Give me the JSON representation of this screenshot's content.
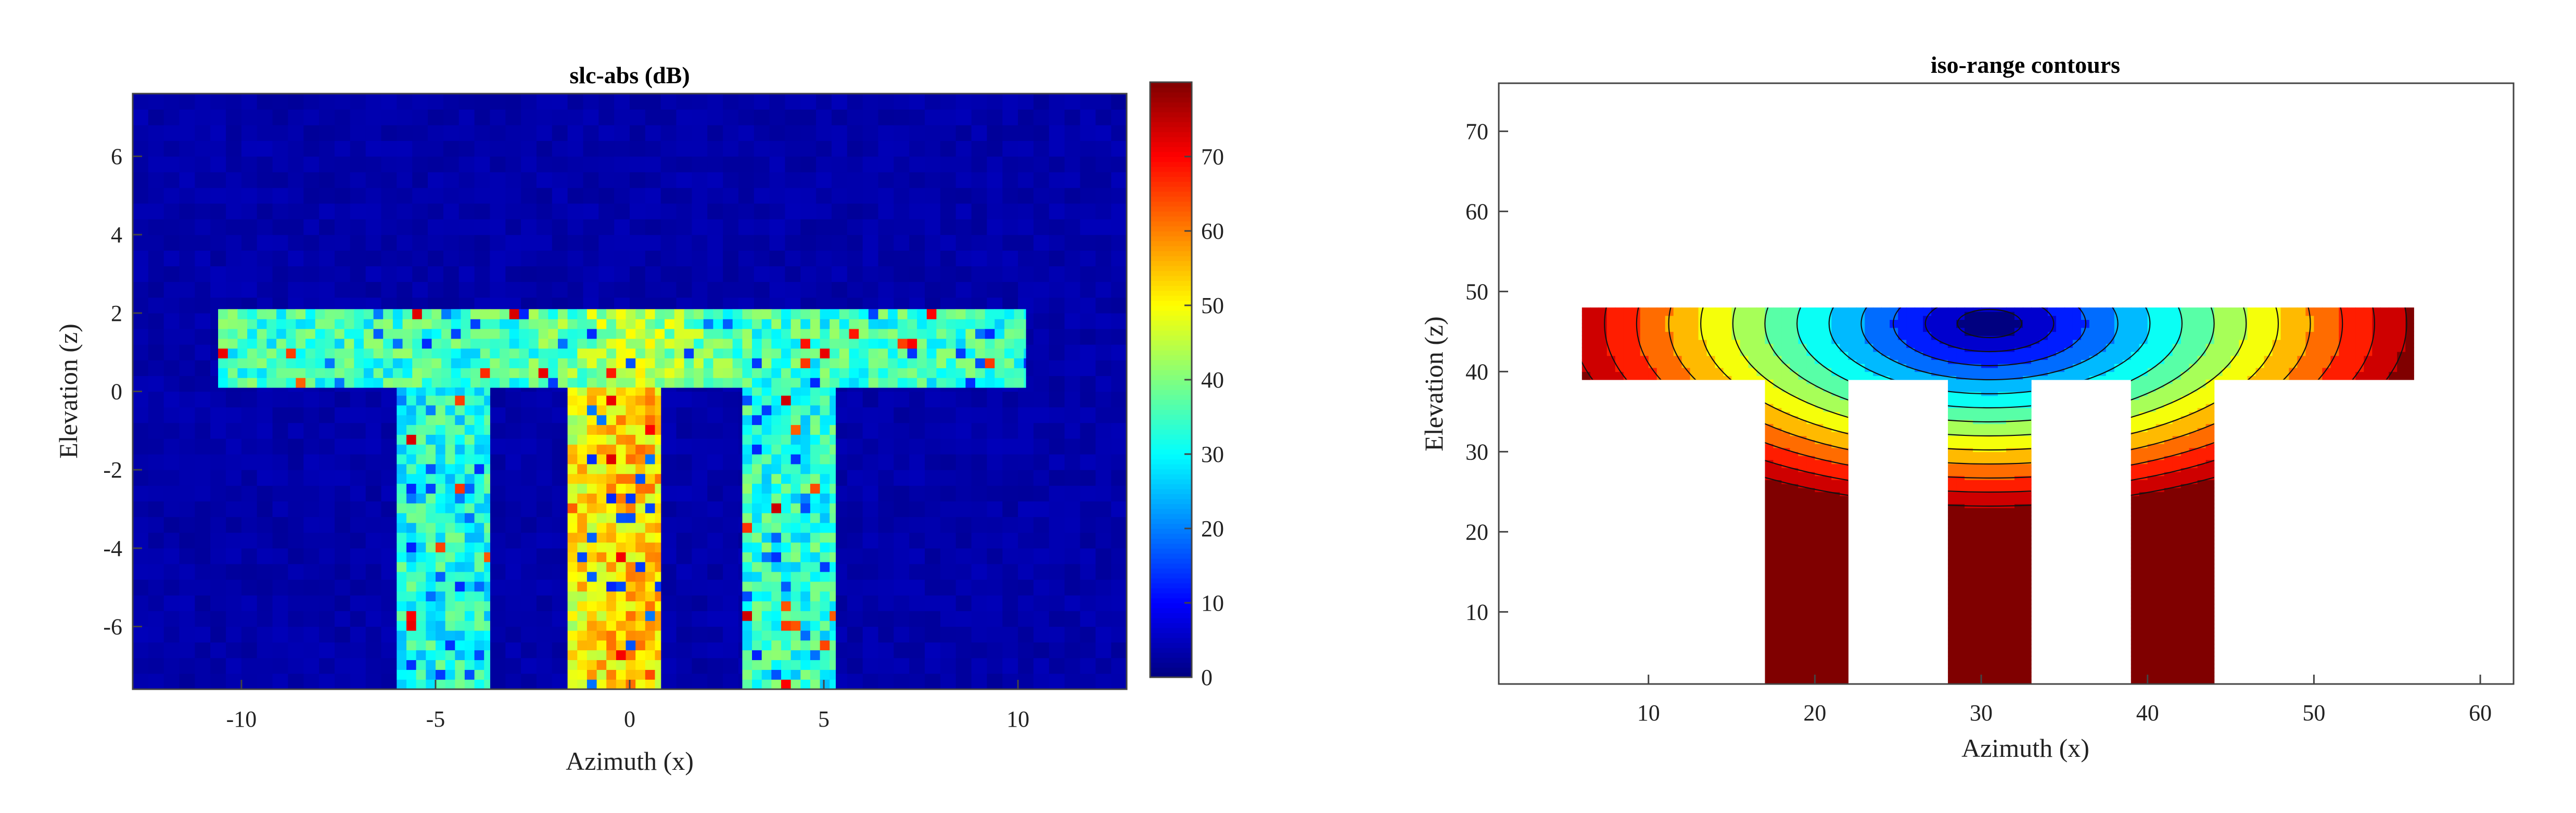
{
  "chart_data": [
    {
      "type": "heatmap",
      "title": "slc-abs (dB)",
      "xlabel": "Azimuth (x)",
      "ylabel": "Elevation (z)",
      "xlim": [
        -12.8,
        12.8
      ],
      "ylim": [
        -7.6,
        7.6
      ],
      "xticks": [
        -10,
        -5,
        0,
        5,
        10
      ],
      "xtick_labels": [
        "-10",
        "-5",
        "0",
        "5",
        "10"
      ],
      "yticks": [
        -6,
        -4,
        -2,
        0,
        2,
        4,
        6
      ],
      "ytick_labels": [
        "-6",
        "-4",
        "-2",
        "0",
        "2",
        "4",
        "6"
      ],
      "colormap": "jet",
      "colorbar": {
        "range": [
          0,
          80
        ],
        "ticks": [
          0,
          10,
          20,
          30,
          40,
          50,
          60,
          70
        ],
        "tick_labels": [
          "0",
          "10",
          "20",
          "30",
          "40",
          "50",
          "60",
          "70"
        ]
      },
      "background_level": 2,
      "regions": [
        {
          "name": "top-bar",
          "x": [
            -10.6,
            10.2
          ],
          "z": [
            0.1,
            2.1
          ],
          "mean_db": 34
        },
        {
          "name": "left-leg",
          "x": [
            -6.0,
            -3.6
          ],
          "z": [
            -7.6,
            0.1
          ],
          "mean_db": 32
        },
        {
          "name": "center-leg",
          "x": [
            -1.6,
            0.8
          ],
          "z": [
            -7.6,
            0.1
          ],
          "mean_db": 44
        },
        {
          "name": "right-leg",
          "x": [
            2.9,
            5.3
          ],
          "z": [
            -7.6,
            0.1
          ],
          "mean_db": 33
        }
      ]
    },
    {
      "type": "contour",
      "title": "iso-range contours",
      "xlabel": "Azimuth (x)",
      "ylabel": "Elevation (z)",
      "xlim": [
        1,
        62
      ],
      "ylim": [
        1,
        76
      ],
      "xticks": [
        10,
        20,
        30,
        40,
        50,
        60
      ],
      "xtick_labels": [
        "10",
        "20",
        "30",
        "40",
        "50",
        "60"
      ],
      "yticks": [
        10,
        20,
        30,
        40,
        50,
        60,
        70
      ],
      "ytick_labels": [
        "10",
        "20",
        "30",
        "40",
        "50",
        "60",
        "70"
      ],
      "colormap": "jet",
      "levels": 14,
      "regions": [
        {
          "name": "top-bar",
          "x": [
            6,
            56
          ],
          "z": [
            39,
            48
          ]
        },
        {
          "name": "left-leg",
          "x": [
            17,
            22
          ],
          "z": [
            1,
            39
          ]
        },
        {
          "name": "center-leg",
          "x": [
            28,
            33
          ],
          "z": [
            1,
            39
          ]
        },
        {
          "name": "right-leg",
          "x": [
            39,
            44
          ],
          "z": [
            1,
            39
          ]
        }
      ],
      "field_center": [
        30.5,
        46
      ]
    }
  ]
}
